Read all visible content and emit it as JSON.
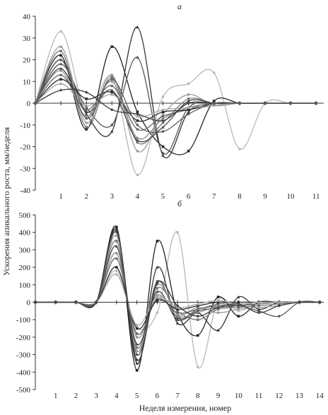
{
  "figure": {
    "ylabel": "Ускорения апикального роста, мм/неделя",
    "xlabel": "Неделя измерения, номер"
  },
  "chart_data": [
    {
      "type": "line",
      "panel_label": "а",
      "xlim": [
        0,
        11.3
      ],
      "ylim": [
        -40,
        40
      ],
      "yticks": [
        -40,
        -30,
        -20,
        -10,
        0,
        10,
        20,
        30,
        40
      ],
      "xticks": [
        1,
        2,
        3,
        4,
        5,
        6,
        7,
        8,
        9,
        10,
        11
      ],
      "grid": false,
      "x": [
        0,
        1,
        2,
        3,
        4,
        5,
        6,
        7,
        8,
        9,
        10,
        11
      ],
      "series": [
        {
          "color": "#b8b8b8",
          "values": [
            0,
            33,
            -4,
            12,
            -33,
            3,
            9,
            14,
            -21,
            0,
            0,
            0
          ]
        },
        {
          "color": "#222222",
          "values": [
            0,
            22,
            -12,
            26,
            -4,
            -20,
            -22,
            1,
            0,
            0,
            0,
            0
          ]
        },
        {
          "color": "#333333",
          "values": [
            0,
            20,
            -5,
            -13,
            35,
            -24,
            -4,
            0,
            0,
            0,
            0,
            0
          ]
        },
        {
          "color": "#555555",
          "values": [
            0,
            18,
            -2,
            -10,
            21,
            -23,
            -2,
            0,
            0,
            0,
            0,
            0
          ]
        },
        {
          "color": "#9a9a9a",
          "values": [
            0,
            26,
            -9,
            13,
            -22,
            -5,
            4,
            -1,
            0,
            0,
            0,
            0
          ]
        },
        {
          "color": "#777777",
          "values": [
            0,
            24,
            -11,
            12,
            -18,
            -9,
            2,
            0,
            0,
            0,
            0,
            0
          ]
        },
        {
          "color": "#444444",
          "values": [
            0,
            16,
            -4,
            6,
            -17,
            -11,
            1,
            0,
            0,
            0,
            0,
            0
          ]
        },
        {
          "color": "#8c8c8c",
          "values": [
            0,
            15,
            -6,
            10,
            -16,
            -7,
            -2,
            0,
            0,
            0,
            0,
            0
          ]
        },
        {
          "color": "#666666",
          "values": [
            0,
            13,
            -3,
            8,
            -12,
            -6,
            -3,
            -1,
            0,
            0,
            0,
            0
          ]
        },
        {
          "color": "#2e2e2e",
          "values": [
            0,
            11,
            2,
            5,
            -8,
            -4,
            -3,
            0,
            0,
            0,
            0,
            0
          ]
        },
        {
          "color": "#a6a6a6",
          "values": [
            0,
            9,
            -1,
            4,
            -6,
            -3,
            -2,
            -1,
            0,
            0,
            0,
            0
          ]
        },
        {
          "color": "#3c3c3c",
          "values": [
            0,
            6,
            5,
            -3,
            -5,
            -8,
            0,
            0,
            0,
            0,
            0,
            0
          ]
        },
        {
          "color": "#5e5e5e",
          "values": [
            0,
            20,
            -7,
            11,
            -10,
            -13,
            -5,
            0,
            0,
            0,
            0,
            0
          ]
        }
      ]
    },
    {
      "type": "line",
      "panel_label": "б",
      "xlim": [
        0,
        14.2
      ],
      "ylim": [
        -500,
        500
      ],
      "yticks": [
        -500,
        -400,
        -300,
        -200,
        -100,
        0,
        100,
        200,
        300,
        400,
        500
      ],
      "xticks": [
        1,
        2,
        3,
        4,
        5,
        6,
        7,
        8,
        9,
        10,
        11,
        12,
        13,
        14
      ],
      "grid": false,
      "x": [
        0,
        1,
        2,
        3,
        4,
        5,
        6,
        7,
        8,
        9,
        10,
        11,
        12,
        13,
        14
      ],
      "series": [
        {
          "color": "#b8b8b8",
          "values": [
            0,
            0,
            0,
            0,
            180,
            -140,
            -60,
            400,
            -370,
            10,
            -50,
            0,
            0,
            0,
            0
          ]
        },
        {
          "color": "#222222",
          "values": [
            0,
            0,
            0,
            0,
            430,
            -390,
            350,
            -60,
            -190,
            30,
            -80,
            0,
            0,
            0,
            0
          ]
        },
        {
          "color": "#333333",
          "values": [
            0,
            0,
            0,
            0,
            420,
            -350,
            200,
            -120,
            -60,
            -160,
            30,
            -40,
            0,
            0,
            0
          ]
        },
        {
          "color": "#555555",
          "values": [
            0,
            0,
            0,
            0,
            400,
            -300,
            120,
            -90,
            -40,
            -20,
            -20,
            -50,
            -80,
            0,
            0
          ]
        },
        {
          "color": "#9a9a9a",
          "values": [
            0,
            0,
            0,
            0,
            380,
            -280,
            100,
            -70,
            -30,
            -60,
            -40,
            -30,
            -20,
            0,
            0
          ]
        },
        {
          "color": "#777777",
          "values": [
            0,
            0,
            0,
            0,
            350,
            -260,
            80,
            -50,
            -100,
            -40,
            -30,
            -20,
            -10,
            0,
            0
          ]
        },
        {
          "color": "#444444",
          "values": [
            0,
            0,
            0,
            0,
            320,
            -240,
            60,
            -100,
            -50,
            -30,
            -20,
            -10,
            0,
            0,
            0
          ]
        },
        {
          "color": "#8c8c8c",
          "values": [
            0,
            0,
            0,
            0,
            280,
            -200,
            40,
            -80,
            -60,
            -20,
            -10,
            -10,
            0,
            0,
            0
          ]
        },
        {
          "color": "#666666",
          "values": [
            0,
            0,
            0,
            0,
            250,
            -180,
            20,
            -60,
            -40,
            -10,
            0,
            0,
            0,
            0,
            0
          ]
        },
        {
          "color": "#2e2e2e",
          "values": [
            0,
            0,
            0,
            0,
            200,
            -150,
            10,
            -40,
            -20,
            0,
            0,
            0,
            0,
            0,
            0
          ]
        },
        {
          "color": "#a6a6a6",
          "values": [
            0,
            0,
            0,
            0,
            160,
            -130,
            30,
            -30,
            -10,
            10,
            -10,
            0,
            0,
            0,
            0
          ]
        },
        {
          "color": "#3c3c3c",
          "values": [
            0,
            0,
            0,
            0,
            410,
            -330,
            110,
            -20,
            -80,
            -30,
            -10,
            -60,
            -20,
            0,
            0
          ]
        }
      ]
    }
  ]
}
